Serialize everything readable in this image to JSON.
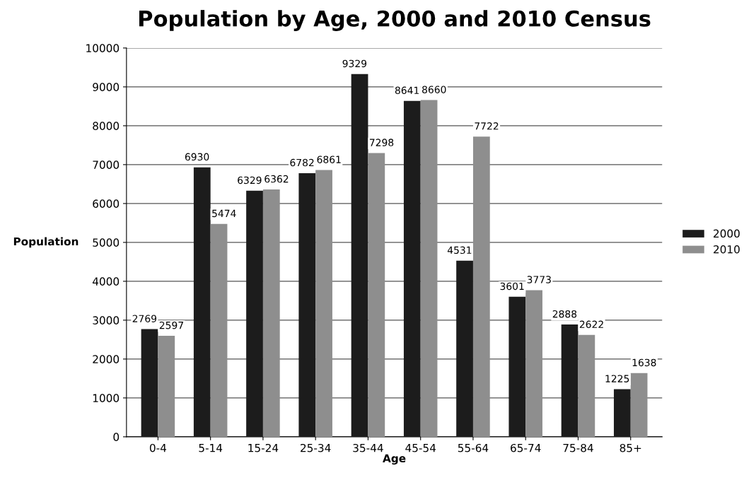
{
  "chart_data": {
    "type": "bar",
    "title": "Population by Age, 2000 and 2010 Census",
    "xlabel": "Age",
    "ylabel": "Population",
    "categories": [
      "0-4",
      "5-14",
      "15-24",
      "25-34",
      "35-44",
      "45-54",
      "55-64",
      "65-74",
      "75-84",
      "85+"
    ],
    "series": [
      {
        "name": "2000",
        "color": "#1c1c1c",
        "values": [
          2769,
          6930,
          6329,
          6782,
          9329,
          8641,
          4531,
          3601,
          2888,
          1225
        ]
      },
      {
        "name": "2010",
        "color": "#8e8e8e",
        "values": [
          2597,
          5474,
          6362,
          6861,
          7298,
          8660,
          7722,
          3773,
          2622,
          1638
        ]
      }
    ],
    "ylim": [
      0,
      10000
    ],
    "yticks": [
      0,
      1000,
      2000,
      3000,
      4000,
      5000,
      6000,
      7000,
      8000,
      9000,
      10000
    ],
    "grid": "y",
    "legend": "right",
    "data_labels": true
  }
}
